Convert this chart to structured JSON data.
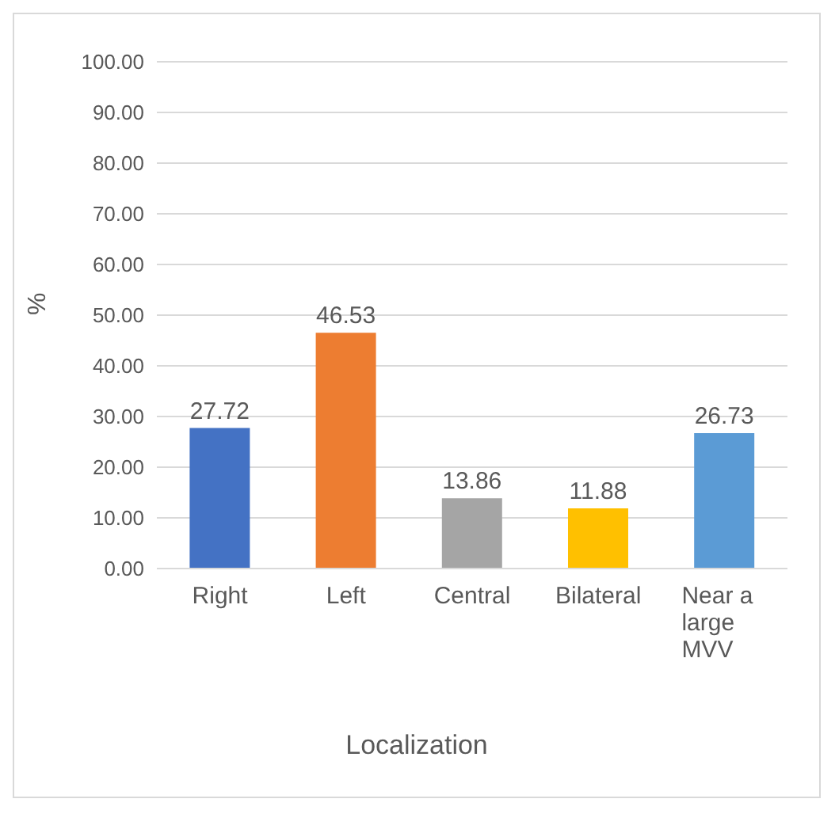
{
  "chart_data": {
    "type": "bar",
    "xlabel": "Localization",
    "ylabel": "%",
    "categories": [
      "Right",
      "Left",
      "Central",
      "Bilateral",
      "Near a large MVV"
    ],
    "values": [
      27.72,
      46.53,
      13.86,
      11.88,
      26.73
    ],
    "colors": [
      "#4472c4",
      "#ed7d31",
      "#a5a5a5",
      "#ffc000",
      "#5b9bd5"
    ],
    "ylim": [
      0,
      100
    ],
    "yticks": [
      {
        "value": 0,
        "label": "0.00"
      },
      {
        "value": 10,
        "label": "10.00"
      },
      {
        "value": 20,
        "label": "20.00"
      },
      {
        "value": 30,
        "label": "30.00"
      },
      {
        "value": 40,
        "label": "40.00"
      },
      {
        "value": 50,
        "label": "50.00"
      },
      {
        "value": 60,
        "label": "60.00"
      },
      {
        "value": 70,
        "label": "70.00"
      },
      {
        "value": 80,
        "label": "80.00"
      },
      {
        "value": 90,
        "label": "90.00"
      },
      {
        "value": 100,
        "label": "100.00"
      }
    ],
    "grid": "y",
    "data_labels": true
  }
}
